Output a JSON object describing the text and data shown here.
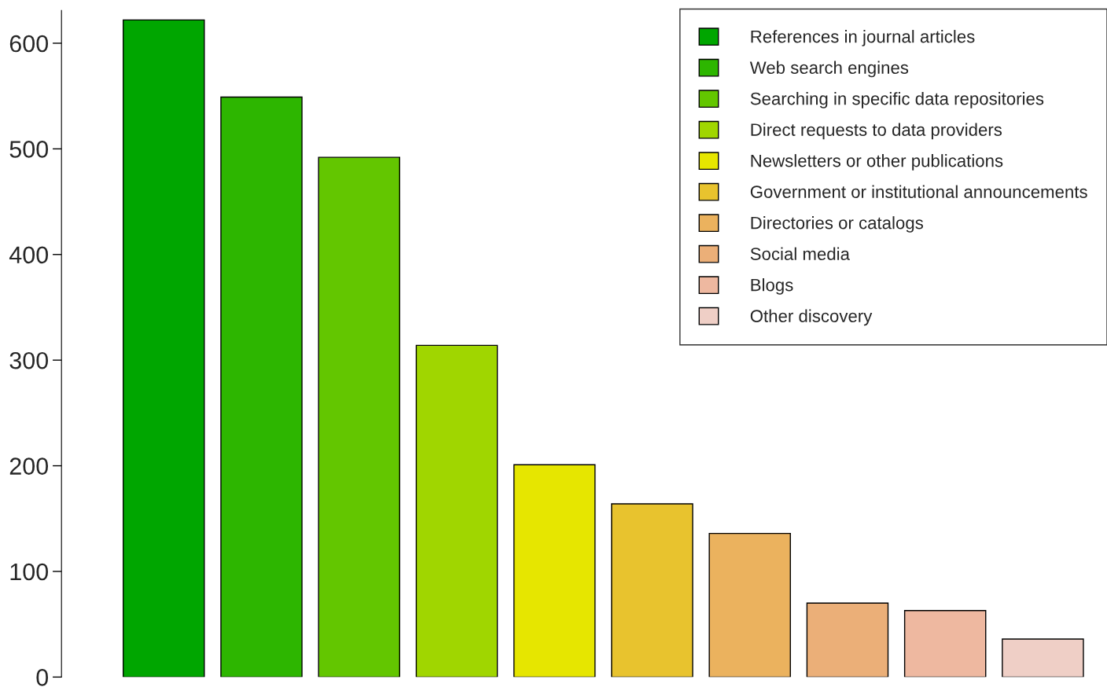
{
  "chart_data": {
    "type": "bar",
    "stacked": true,
    "categories": [
      null,
      null,
      null,
      null,
      null,
      null,
      null,
      null,
      null,
      null
    ],
    "series": [
      {
        "name": "References in journal articles",
        "color": "#00a600",
        "values": [
          622,
          0,
          0,
          0,
          0,
          0,
          0,
          0,
          0,
          0
        ]
      },
      {
        "name": "Web search engines",
        "color": "#2db600",
        "values": [
          0,
          549,
          0,
          0,
          0,
          0,
          0,
          0,
          0,
          0
        ]
      },
      {
        "name": "Searching in specific data repositories",
        "color": "#63c600",
        "values": [
          0,
          0,
          492,
          0,
          0,
          0,
          0,
          0,
          0,
          0
        ]
      },
      {
        "name": "Direct requests to data providers",
        "color": "#a0d600",
        "values": [
          0,
          0,
          0,
          314,
          0,
          0,
          0,
          0,
          0,
          0
        ]
      },
      {
        "name": "Newsletters or other publications",
        "color": "#e6e600",
        "values": [
          0,
          0,
          0,
          0,
          201,
          0,
          0,
          0,
          0,
          0
        ]
      },
      {
        "name": "Government or institutional announcements",
        "color": "#e8c32e",
        "values": [
          0,
          0,
          0,
          0,
          0,
          164,
          0,
          0,
          0,
          0
        ]
      },
      {
        "name": "Directories or catalogs",
        "color": "#ebb25e",
        "values": [
          0,
          0,
          0,
          0,
          0,
          0,
          136,
          0,
          0,
          0
        ]
      },
      {
        "name": "Social media",
        "color": "#ebaf78",
        "values": [
          0,
          0,
          0,
          0,
          0,
          0,
          0,
          70,
          0,
          0
        ]
      },
      {
        "name": "Blogs",
        "color": "#eeb8a0",
        "values": [
          0,
          0,
          0,
          0,
          0,
          0,
          0,
          0,
          63,
          0
        ]
      },
      {
        "name": "Other discovery",
        "color": "#efcfc6",
        "values": [
          0,
          0,
          0,
          0,
          0,
          0,
          0,
          0,
          0,
          36
        ]
      }
    ],
    "ylim": [
      0,
      631
    ],
    "yticks": [
      0,
      100,
      200,
      300,
      400,
      500,
      600
    ],
    "grid": false,
    "legend": "top right"
  }
}
